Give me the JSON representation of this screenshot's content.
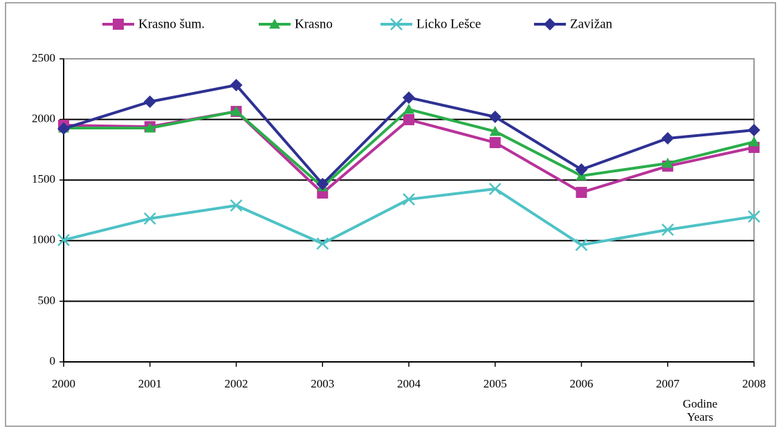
{
  "chart_data": {
    "type": "line",
    "categories": [
      "2000",
      "2001",
      "2002",
      "2003",
      "2004",
      "2005",
      "2006",
      "2007",
      "2008"
    ],
    "series": [
      {
        "name": "Krasno šum.",
        "color": "#b8339a",
        "marker": "square",
        "values": [
          1952,
          1940,
          2066,
          1393,
          1998,
          1809,
          1398,
          1615,
          1769
        ]
      },
      {
        "name": "Krasno",
        "color": "#2aae4a",
        "marker": "triangle",
        "values": [
          1929,
          1929,
          2066,
          1444,
          2083,
          1901,
          1535,
          1638,
          1815
        ]
      },
      {
        "name": "Licko Lešce",
        "color": "#4ec2c6",
        "marker": "x",
        "values": [
          1005,
          1182,
          1290,
          976,
          1341,
          1427,
          965,
          1090,
          1199
        ]
      },
      {
        "name": "Zavižan",
        "color": "#2e3192",
        "marker": "diamond",
        "values": [
          1924,
          2146,
          2283,
          1467,
          2180,
          2021,
          1587,
          1844,
          1912
        ]
      }
    ],
    "xlabel": [
      "Godine",
      "Years"
    ],
    "ylim": [
      0,
      2500
    ],
    "yticks": [
      0,
      500,
      1000,
      1500,
      2000,
      2500
    ],
    "grid": true
  }
}
